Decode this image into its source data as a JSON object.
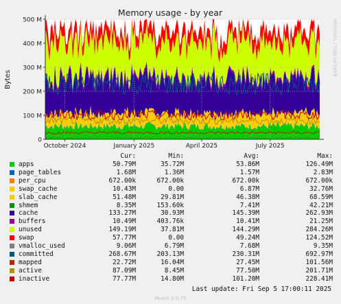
{
  "chart_data": {
    "type": "area",
    "title": "Memory usage - by year",
    "ylabel": "Bytes",
    "ylim": [
      0,
      500000000
    ],
    "y_ticks": [
      {
        "value": 0,
        "label": "0"
      },
      {
        "value": 100000000,
        "label": "100 M"
      },
      {
        "value": 200000000,
        "label": "200 M"
      },
      {
        "value": 300000000,
        "label": "300 M"
      },
      {
        "value": 400000000,
        "label": "400 M"
      },
      {
        "value": 500000000,
        "label": "500 M"
      }
    ],
    "x_range": [
      "2024-09-05",
      "2025-09-05"
    ],
    "x_ticks": [
      {
        "date": "2024-10-01",
        "label": "October 2024"
      },
      {
        "date": "2025-01-01",
        "label": "January 2025"
      },
      {
        "date": "2025-04-01",
        "label": "April 2025"
      },
      {
        "date": "2025-07-01",
        "label": "July 2025"
      }
    ],
    "grid": true,
    "stacked_series_avg_bytes": [
      {
        "name": "apps",
        "value": 53860000
      },
      {
        "name": "page_tables",
        "value": 1570000
      },
      {
        "name": "per_cpu",
        "value": 672000
      },
      {
        "name": "swap_cache",
        "value": 6870000
      },
      {
        "name": "slab_cache",
        "value": 46380000
      },
      {
        "name": "cache",
        "value": 145390000
      },
      {
        "name": "buffers",
        "value": 10410000
      },
      {
        "name": "unused",
        "value": 144290000
      },
      {
        "name": "swap",
        "value": 49240000
      }
    ],
    "line_series_avg_bytes": [
      {
        "name": "shmem",
        "value": 7410000
      },
      {
        "name": "vmalloc_used",
        "value": 7680000
      },
      {
        "name": "committed",
        "value": 230310000
      },
      {
        "name": "mapped",
        "value": 27450000
      },
      {
        "name": "active",
        "value": 77500000
      },
      {
        "name": "inactive",
        "value": 101200000
      }
    ]
  },
  "side_label": "RRDTOOL / TOBI OETIKER",
  "legend": {
    "headers": [
      "Cur:",
      "Min:",
      "Avg:",
      "Max:"
    ],
    "rows": [
      {
        "name": "apps",
        "color": "#00cc00",
        "cur": "50.79M",
        "min": "35.72M",
        "avg": "53.86M",
        "max": "126.49M"
      },
      {
        "name": "page_tables",
        "color": "#0066b3",
        "cur": "1.68M",
        "min": "1.36M",
        "avg": "1.57M",
        "max": "2.83M"
      },
      {
        "name": "per_cpu",
        "color": "#ff8000",
        "cur": "672.00k",
        "min": "672.00k",
        "avg": "672.00k",
        "max": "672.00k"
      },
      {
        "name": "swap_cache",
        "color": "#ffcc00",
        "cur": "10.43M",
        "min": "0.00",
        "avg": "6.87M",
        "max": "32.76M"
      },
      {
        "name": "slab_cache",
        "color": "#ffcc00",
        "cur": "51.48M",
        "min": "29.81M",
        "avg": "46.38M",
        "max": "68.59M"
      },
      {
        "name": "shmem",
        "color": "#008f00",
        "cur": "8.35M",
        "min": "153.60k",
        "avg": "7.41M",
        "max": "42.21M"
      },
      {
        "name": "cache",
        "color": "#330099",
        "cur": "133.27M",
        "min": "30.93M",
        "avg": "145.39M",
        "max": "262.93M"
      },
      {
        "name": "buffers",
        "color": "#990099",
        "cur": "10.49M",
        "min": "403.76k",
        "avg": "10.41M",
        "max": "21.25M"
      },
      {
        "name": "unused",
        "color": "#ccff00",
        "cur": "149.19M",
        "min": "37.81M",
        "avg": "144.29M",
        "max": "284.26M"
      },
      {
        "name": "swap",
        "color": "#ff0000",
        "cur": "57.77M",
        "min": "0.00",
        "avg": "49.24M",
        "max": "124.52M"
      },
      {
        "name": "vmalloc_used",
        "color": "#808080",
        "cur": "9.06M",
        "min": "6.79M",
        "avg": "7.68M",
        "max": "9.35M"
      },
      {
        "name": "committed",
        "color": "#005580",
        "cur": "268.67M",
        "min": "203.13M",
        "avg": "230.31M",
        "max": "692.97M"
      },
      {
        "name": "mapped",
        "color": "#b32400",
        "cur": "22.72M",
        "min": "16.04M",
        "avg": "27.45M",
        "max": "101.56M"
      },
      {
        "name": "active",
        "color": "#b38f00",
        "cur": "87.09M",
        "min": "8.45M",
        "avg": "77.50M",
        "max": "201.71M"
      },
      {
        "name": "inactive",
        "color": "#c00000",
        "cur": "77.77M",
        "min": "14.80M",
        "avg": "101.20M",
        "max": "228.41M"
      }
    ]
  },
  "footer": {
    "last_update": "Last update:  Fri Sep  5 17:00:11 2025",
    "munin": "Munin 2.0.75"
  }
}
